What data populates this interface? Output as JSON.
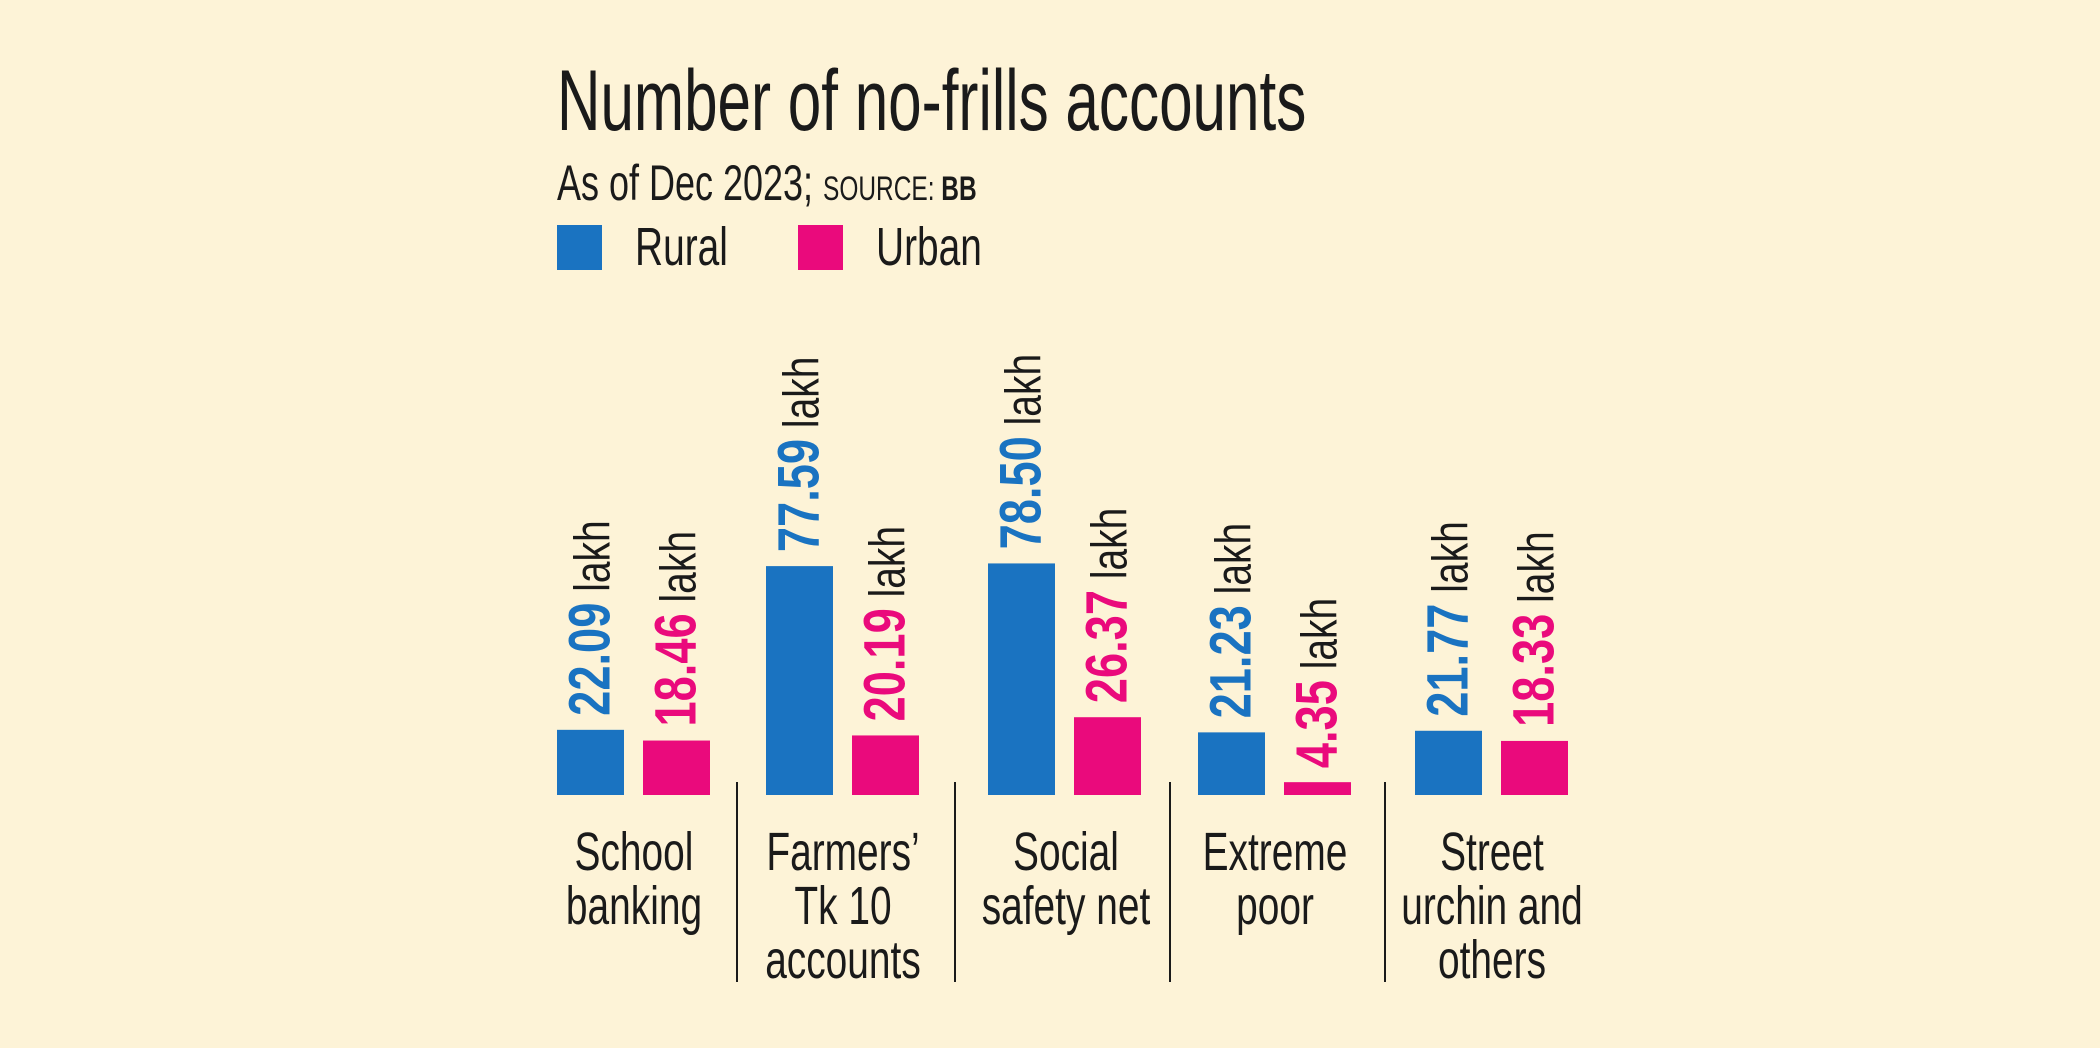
{
  "chart_data": {
    "type": "bar",
    "title": "Number of no-frills accounts",
    "subtitle": "As of Dec 2023;",
    "source_prefix": "SOURCE:",
    "source_name": "BB",
    "unit": "lakh",
    "categories": [
      [
        "School",
        "banking"
      ],
      [
        "Farmers’",
        "Tk 10",
        "accounts"
      ],
      [
        "Social",
        "safety net"
      ],
      [
        "Extreme",
        "poor"
      ],
      [
        "Street",
        "urchin and",
        "others"
      ]
    ],
    "series": [
      {
        "name": "Rural",
        "color": "#1a73c1",
        "values": [
          22.09,
          77.59,
          78.5,
          21.23,
          21.77
        ]
      },
      {
        "name": "Urban",
        "color": "#ea0a7c",
        "values": [
          18.46,
          20.19,
          26.37,
          4.35,
          18.33
        ]
      }
    ],
    "value_labels": [
      [
        "22.09",
        "77.59",
        "78.50",
        "21.23",
        "21.77"
      ],
      [
        "18.46",
        "20.19",
        "26.37",
        "4.35",
        "18.33"
      ]
    ],
    "ylim": [
      0,
      80
    ],
    "legend_position": "top-left",
    "grid": false
  }
}
